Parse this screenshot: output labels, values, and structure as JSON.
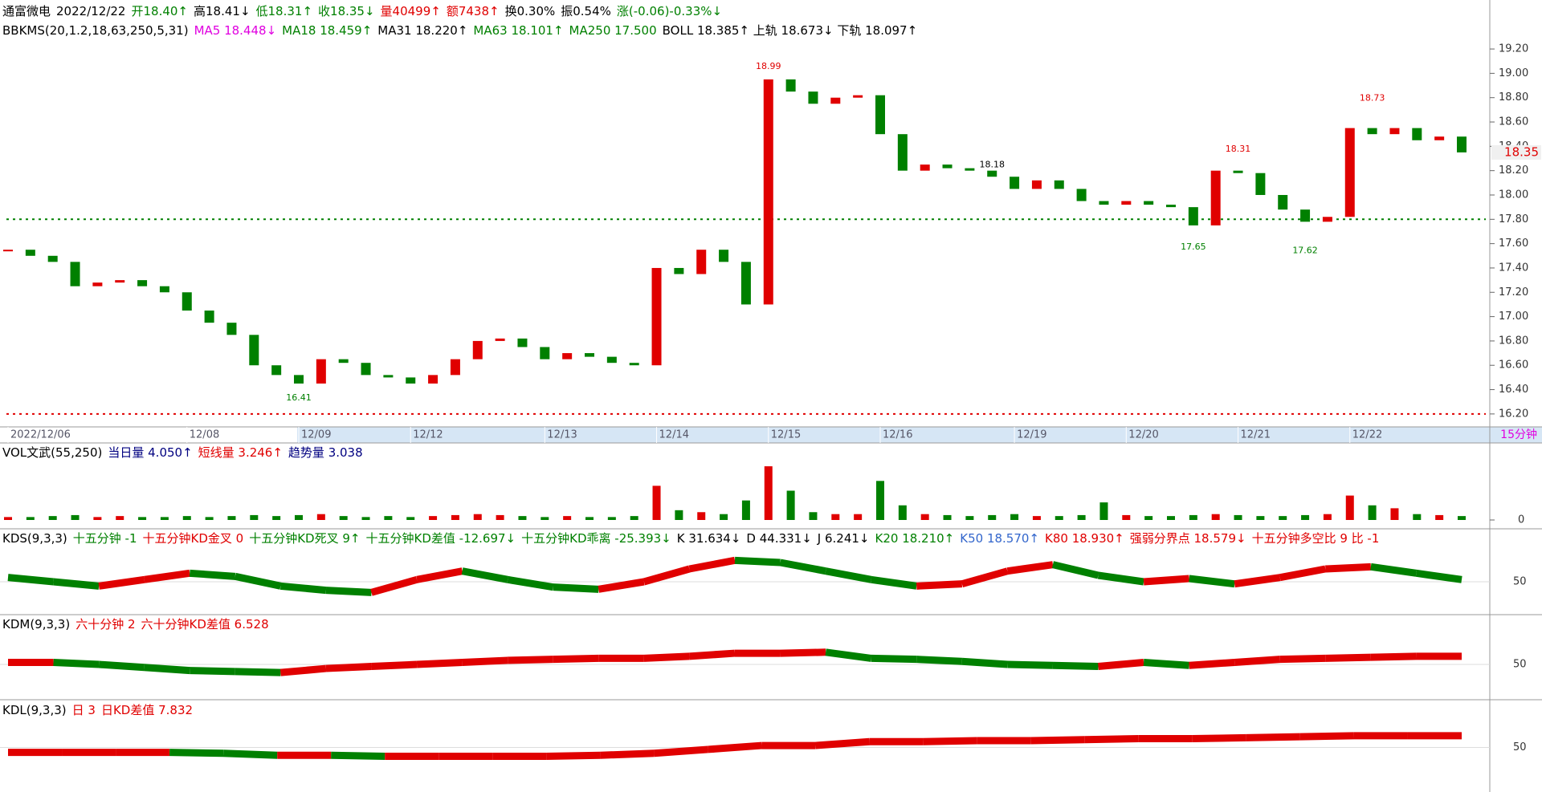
{
  "header": {
    "items": [
      {
        "text": "通富微电",
        "color": "#000000"
      },
      {
        "text": "2022/12/22",
        "color": "#000000"
      },
      {
        "text": "开18.40↑",
        "color": "#008000"
      },
      {
        "text": "高18.41↓",
        "color": "#000000"
      },
      {
        "text": "低18.31↑",
        "color": "#008000"
      },
      {
        "text": "收18.35↓",
        "color": "#008000"
      },
      {
        "text": "量40499↑",
        "color": "#e00000"
      },
      {
        "text": "额7438↑",
        "color": "#e00000"
      },
      {
        "text": "换0.30%",
        "color": "#000000"
      },
      {
        "text": "振0.54%",
        "color": "#000000"
      },
      {
        "text": "涨(-0.06)-0.33%↓",
        "color": "#008000"
      }
    ]
  },
  "indicators": {
    "items": [
      {
        "text": "BBKMS(20,1.2,18,63,250,5,31)",
        "color": "#000000"
      },
      {
        "text": "MA5 18.448↓",
        "color": "#e000e0"
      },
      {
        "text": "MA18 18.459↑",
        "color": "#008000"
      },
      {
        "text": "MA31 18.220↑",
        "color": "#000000"
      },
      {
        "text": "MA63 18.101↑",
        "color": "#008000"
      },
      {
        "text": "MA250 17.500",
        "color": "#008000"
      },
      {
        "text": "BOLL 18.385↑ 上轨 18.673↓ 下轨 18.097↑",
        "color": "#000000"
      }
    ]
  },
  "chart_data": [
    {
      "type": "candlestick",
      "up_color": "#e00000",
      "down_color": "#008000",
      "categories": [
        "2022/12/06",
        null,
        null,
        null,
        null,
        null,
        null,
        null,
        "12/08",
        null,
        null,
        null,
        null,
        "12/09",
        null,
        null,
        null,
        null,
        "12/12",
        null,
        null,
        null,
        null,
        null,
        "12/13",
        null,
        null,
        null,
        null,
        "12/14",
        null,
        null,
        null,
        null,
        "12/15",
        null,
        null,
        null,
        null,
        "12/16",
        null,
        null,
        null,
        null,
        null,
        "12/19",
        null,
        null,
        null,
        null,
        "12/20",
        null,
        null,
        null,
        null,
        "12/21",
        null,
        null,
        null,
        null,
        "12/22",
        null,
        null,
        null,
        null,
        null
      ],
      "values": [
        17.55,
        17.5,
        17.45,
        17.25,
        17.28,
        17.3,
        17.25,
        17.2,
        17.05,
        16.95,
        16.85,
        16.6,
        16.52,
        16.45,
        16.65,
        16.62,
        16.52,
        16.5,
        16.45,
        16.52,
        16.65,
        16.8,
        16.82,
        16.75,
        16.65,
        16.7,
        16.67,
        16.62,
        16.6,
        17.4,
        17.35,
        17.55,
        17.45,
        17.1,
        18.95,
        18.85,
        18.75,
        18.8,
        18.82,
        18.5,
        18.2,
        18.25,
        18.22,
        18.2,
        18.15,
        18.05,
        18.12,
        18.05,
        17.95,
        17.92,
        17.95,
        17.92,
        17.9,
        17.75,
        18.2,
        18.18,
        18.0,
        17.88,
        17.78,
        17.82,
        18.55,
        18.5,
        18.55,
        18.45,
        18.48,
        18.35
      ],
      "ylim": [
        16.12,
        19.24
      ],
      "yticks": [
        {
          "value": 19.2,
          "label": "19.20"
        },
        {
          "value": 19.0,
          "label": "19.00"
        },
        {
          "value": 18.8,
          "label": "18.80"
        },
        {
          "value": 18.6,
          "label": "18.60"
        },
        {
          "value": 18.4,
          "label": "18.40"
        },
        {
          "value": 18.2,
          "label": "18.20"
        },
        {
          "value": 18.0,
          "label": "18.00"
        },
        {
          "value": 17.8,
          "label": "17.80"
        },
        {
          "value": 17.6,
          "label": "17.60"
        },
        {
          "value": 17.4,
          "label": "17.40"
        },
        {
          "value": 17.2,
          "label": "17.20"
        },
        {
          "value": 17.0,
          "label": "17.00"
        },
        {
          "value": 16.8,
          "label": "16.80"
        },
        {
          "value": 16.6,
          "label": "16.60"
        },
        {
          "value": 16.4,
          "label": "16.40"
        },
        {
          "value": 16.2,
          "label": "16.20"
        }
      ],
      "last_price": 18.35,
      "levels": [
        {
          "value": 17.8,
          "color": "#008000"
        },
        {
          "value": 16.2,
          "color": "#e00000"
        }
      ],
      "annotations": [
        {
          "value": 18.99,
          "index": 34,
          "color": "#e00000"
        },
        {
          "value": 16.41,
          "index": 13,
          "color": "#008000"
        },
        {
          "value": 18.73,
          "index": 61,
          "color": "#e00000"
        },
        {
          "value": 18.31,
          "index": 55,
          "color": "#e00000"
        },
        {
          "value": 18.18,
          "index": 44,
          "color": "#000000"
        },
        {
          "value": 17.65,
          "index": 53,
          "color": "#008000"
        },
        {
          "value": 17.62,
          "index": 58,
          "color": "#008000"
        }
      ],
      "period": "15分钟"
    },
    {
      "type": "bar",
      "title_items": [
        {
          "text": "VOL文武(55,250)",
          "color": "#000000"
        },
        {
          "text": "当日量 4.050↑",
          "color": "#000080"
        },
        {
          "text": "短线量 3.246↑",
          "color": "#e00000"
        },
        {
          "text": "趋势量 3.038",
          "color": "#000080"
        }
      ],
      "values": [
        3,
        3,
        4,
        5,
        3,
        4,
        3,
        3,
        4,
        3,
        4,
        5,
        4,
        5,
        6,
        4,
        3,
        4,
        3,
        4,
        5,
        6,
        5,
        4,
        3,
        4,
        3,
        3,
        4,
        35,
        10,
        8,
        6,
        20,
        55,
        30,
        8,
        6,
        6,
        40,
        15,
        6,
        5,
        4,
        5,
        6,
        4,
        4,
        5,
        18,
        5,
        4,
        4,
        5,
        6,
        5,
        4,
        4,
        5,
        6,
        25,
        15,
        12,
        6,
        5,
        4
      ],
      "ylim": [
        0,
        60
      ],
      "yticks": [
        0
      ]
    },
    {
      "type": "band",
      "title_items": [
        {
          "text": "KDS(9,3,3)",
          "color": "#000000"
        },
        {
          "text": "十五分钟 -1",
          "color": "#008000"
        },
        {
          "text": "十五分钟KD金叉 0",
          "color": "#e00000"
        },
        {
          "text": "十五分钟KD死叉 9↑",
          "color": "#008000"
        },
        {
          "text": "十五分钟KD差值 -12.697↓",
          "color": "#008000"
        },
        {
          "text": "十五分钟KD乖离 -25.393↓",
          "color": "#008000"
        },
        {
          "text": "K 31.634↓",
          "color": "#000000"
        },
        {
          "text": "D 44.331↓",
          "color": "#000000"
        },
        {
          "text": "J 6.241↓",
          "color": "#000000"
        },
        {
          "text": "K20 18.210↑",
          "color": "#008000"
        },
        {
          "text": "K50 18.570↑",
          "color": "#3366cc"
        },
        {
          "text": "K80 18.930↑",
          "color": "#e00000"
        },
        {
          "text": "强弱分界点 18.579↓",
          "color": "#e00000"
        },
        {
          "text": "十五分钟多空比 9 比 -1",
          "color": "#e00000"
        }
      ],
      "values": [
        54,
        50,
        46,
        52,
        58,
        55,
        46,
        42,
        40,
        52,
        60,
        52,
        45,
        43,
        50,
        62,
        70,
        68,
        60,
        52,
        46,
        48,
        60,
        66,
        56,
        50,
        53,
        48,
        54,
        62,
        64,
        58,
        52
      ],
      "ylim": [
        20,
        80
      ],
      "yticks": [
        50
      ]
    },
    {
      "type": "band",
      "title_items": [
        {
          "text": "KDM(9,3,3)",
          "color": "#000000"
        },
        {
          "text": "六十分钟 2",
          "color": "#e00000"
        },
        {
          "text": "六十分钟KD差值 6.528",
          "color": "#e00000"
        }
      ],
      "values": [
        52,
        52,
        50,
        47,
        44,
        43,
        42,
        46,
        48,
        50,
        52,
        54,
        55,
        56,
        56,
        58,
        61,
        61,
        62,
        56,
        55,
        53,
        50,
        49,
        48,
        52,
        49,
        52,
        55,
        56,
        57,
        58,
        58
      ],
      "ylim": [
        20,
        80
      ],
      "yticks": [
        50
      ]
    },
    {
      "type": "band",
      "title_items": [
        {
          "text": "KDL(9,3,3)",
          "color": "#000000"
        },
        {
          "text": "日 3",
          "color": "#e00000"
        },
        {
          "text": "日KD差值 7.832",
          "color": "#e00000"
        }
      ],
      "values": [
        45,
        45,
        45,
        45,
        44,
        42,
        42,
        41,
        41,
        41,
        41,
        42,
        44,
        48,
        52,
        52,
        56,
        56,
        57,
        57,
        58,
        59,
        59,
        60,
        61,
        62,
        62,
        62
      ],
      "ylim": [
        20,
        80
      ],
      "yticks": [
        50
      ]
    }
  ]
}
